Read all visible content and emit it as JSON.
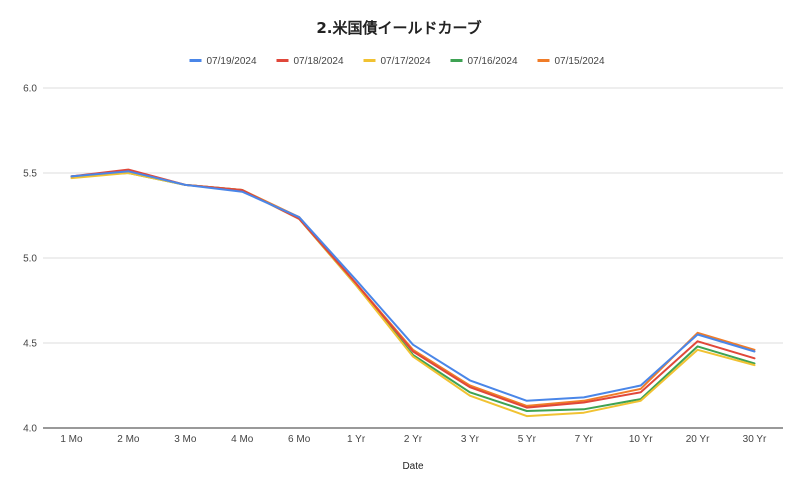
{
  "chart_data": {
    "type": "line",
    "title": "2.米国債イールドカーブ",
    "xlabel": "Date",
    "ylabel": "",
    "ylim": [
      4.0,
      6.0
    ],
    "yticks": [
      "4.0",
      "4.5",
      "5.0",
      "5.5",
      "6.0"
    ],
    "grid": true,
    "legend_position": "top",
    "categories": [
      "1 Mo",
      "2 Mo",
      "3 Mo",
      "4 Mo",
      "6 Mo",
      "1 Yr",
      "2 Yr",
      "3 Yr",
      "5 Yr",
      "7 Yr",
      "10 Yr",
      "20 Yr",
      "30 Yr"
    ],
    "series": [
      {
        "name": "07/19/2024",
        "color": "#4a86e8",
        "values": [
          5.48,
          5.51,
          5.43,
          5.39,
          5.24,
          4.87,
          4.49,
          4.28,
          4.16,
          4.18,
          4.25,
          4.55,
          4.45
        ]
      },
      {
        "name": "07/18/2024",
        "color": "#e0473a",
        "values": [
          5.48,
          5.52,
          5.43,
          5.4,
          5.23,
          4.85,
          4.45,
          4.24,
          4.12,
          4.15,
          4.21,
          4.51,
          4.41
        ]
      },
      {
        "name": "07/17/2024",
        "color": "#f1c232",
        "values": [
          5.47,
          5.5,
          5.43,
          5.4,
          5.23,
          4.84,
          4.42,
          4.19,
          4.07,
          4.09,
          4.16,
          4.46,
          4.37
        ]
      },
      {
        "name": "07/16/2024",
        "color": "#3ea253",
        "values": [
          5.48,
          5.5,
          5.43,
          5.4,
          5.23,
          4.84,
          4.43,
          4.21,
          4.1,
          4.11,
          4.17,
          4.48,
          4.38
        ]
      },
      {
        "name": "07/15/2024",
        "color": "#f07c28",
        "values": [
          5.48,
          5.51,
          5.43,
          5.4,
          5.24,
          4.85,
          4.46,
          4.25,
          4.13,
          4.16,
          4.23,
          4.56,
          4.46
        ]
      }
    ]
  }
}
